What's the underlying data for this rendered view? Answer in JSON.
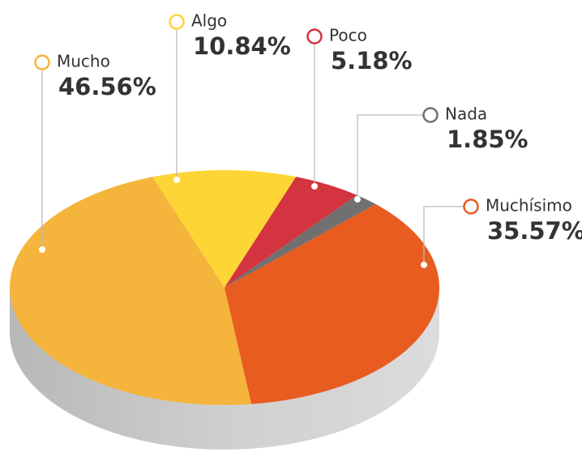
{
  "chart_data": {
    "type": "pie",
    "categories": [
      "Mucho",
      "Algo",
      "Poco",
      "Nada",
      "Muchísimo"
    ],
    "values": [
      46.56,
      10.84,
      5.18,
      1.85,
      35.57
    ],
    "value_labels": [
      "46.56%",
      "10.84%",
      "5.18%",
      "1.85%",
      "35.57%"
    ],
    "colors": [
      "#f5b43c",
      "#fdd535",
      "#d3343f",
      "#707070",
      "#e85c20"
    ]
  }
}
